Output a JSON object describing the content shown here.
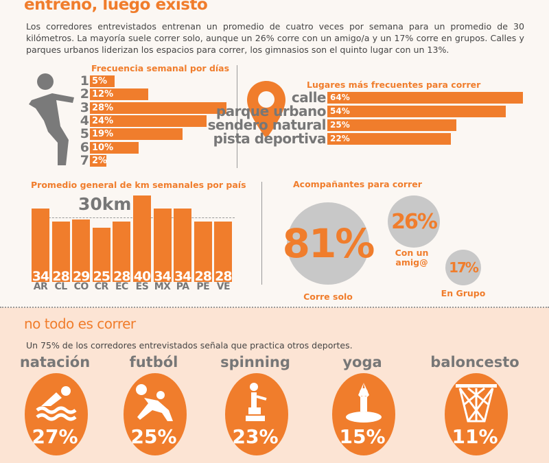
{
  "header": {
    "title": "entreno, luego existo",
    "intro": "Los corredores entrevistados entrenan un promedio de cuatro veces por semana para un promedio de 30 kilómetros. La mayoría suele correr solo, aunque un 26% corre con un amigo/a  y un 17% corre en grupos. Calles y parques urbanos liderizan los espacios para correr, los gimnasios son el quinto lugar con un 13%."
  },
  "colors": {
    "accent": "#f07d2c",
    "gray": "#777777",
    "peach": "#fce4d4"
  },
  "chart_data": [
    {
      "type": "bar",
      "orientation": "horizontal",
      "title": "Frecuencia semanal por días",
      "categories": [
        "1",
        "2",
        "3",
        "4",
        "5",
        "6",
        "7"
      ],
      "values": [
        5,
        12,
        28,
        24,
        19,
        10,
        2
      ],
      "labels": [
        "5%",
        "12%",
        "28%",
        "24%",
        "19%",
        "10%",
        "2%"
      ]
    },
    {
      "type": "bar",
      "orientation": "horizontal",
      "title": "Lugares más frecuentes para correr",
      "categories": [
        "calle",
        "parque urbano",
        "sendero natural",
        "pista deportiva"
      ],
      "values": [
        64,
        54,
        25,
        22
      ],
      "labels": [
        "64%",
        "54%",
        "25%",
        "22%"
      ]
    },
    {
      "type": "bar",
      "title": "Promedio general de km semanales por país",
      "categories": [
        "AR",
        "CL",
        "CO",
        "CR",
        "EC",
        "ES",
        "MX",
        "PA",
        "PE",
        "VE"
      ],
      "values": [
        34,
        28,
        29,
        25,
        28,
        40,
        34,
        34,
        28,
        28
      ],
      "reference_line": {
        "value": 30,
        "label": "30km"
      },
      "ylim": [
        0,
        40
      ]
    },
    {
      "type": "bubble",
      "title": "Acompañantes para correr",
      "categories": [
        "Corre solo",
        "Con un amig@",
        "En Grupo"
      ],
      "values": [
        81,
        26,
        17
      ],
      "labels": [
        "81%",
        "26%",
        "17%"
      ]
    }
  ],
  "section2": {
    "title": "no todo es correr",
    "subtitle": "Un 75% de los corredores entrevistados señala que practica otros deportes.",
    "sports": [
      {
        "name": "natación",
        "pct": "27%",
        "icon": "swimmer-icon"
      },
      {
        "name": "futból",
        "pct": "25%",
        "icon": "soccer-player-icon"
      },
      {
        "name": "spinning",
        "pct": "23%",
        "icon": "stationary-bike-icon"
      },
      {
        "name": "yoga",
        "pct": "15%",
        "icon": "yoga-pose-icon"
      },
      {
        "name": "baloncesto",
        "pct": "11%",
        "icon": "basketball-hoop-icon"
      }
    ]
  }
}
